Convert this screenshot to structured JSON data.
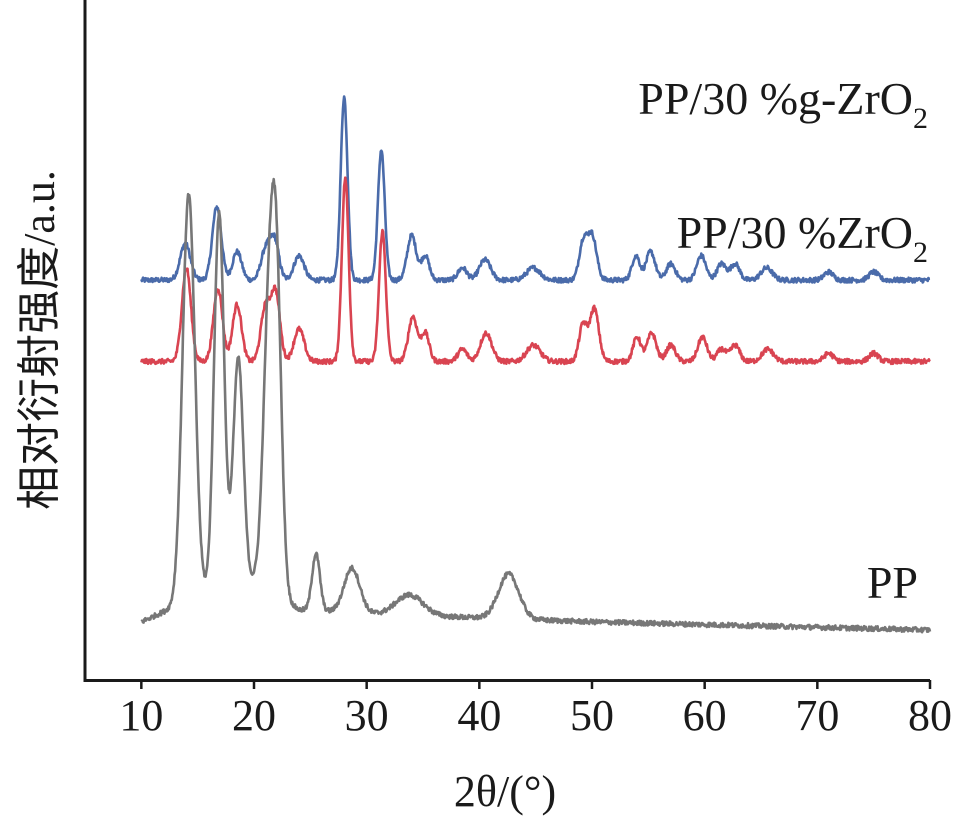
{
  "chart_data": {
    "type": "line",
    "title": "",
    "xlabel": "2θ/(°)",
    "ylabel": "相对衍射强度/a.u.",
    "xlim": [
      5,
      80
    ],
    "xticks": [
      10,
      20,
      30,
      40,
      50,
      60,
      70,
      80
    ],
    "y_tick_labels": false,
    "grid": false,
    "legend": "labels placed beside each curve",
    "series": [
      {
        "name": "PP/30 %g-ZrO2",
        "label_main": "PP/30 %g-ZrO",
        "label_sub": "2",
        "color": "#4a6baa",
        "baseline": 0.86,
        "peaks": [
          [
            13.9,
            0.09,
            0.45
          ],
          [
            16.7,
            0.18,
            0.4
          ],
          [
            18.5,
            0.07,
            0.4
          ],
          [
            21.0,
            0.07,
            0.4
          ],
          [
            21.8,
            0.1,
            0.4
          ],
          [
            24.0,
            0.06,
            0.45
          ],
          [
            28.0,
            0.45,
            0.3
          ],
          [
            31.3,
            0.32,
            0.3
          ],
          [
            34.0,
            0.11,
            0.4
          ],
          [
            35.2,
            0.06,
            0.35
          ],
          [
            38.5,
            0.03,
            0.4
          ],
          [
            40.5,
            0.05,
            0.5
          ],
          [
            44.8,
            0.03,
            0.6
          ],
          [
            49.2,
            0.09,
            0.35
          ],
          [
            50.0,
            0.11,
            0.4
          ],
          [
            53.9,
            0.06,
            0.35
          ],
          [
            55.2,
            0.07,
            0.4
          ],
          [
            57.0,
            0.04,
            0.4
          ],
          [
            59.7,
            0.06,
            0.4
          ],
          [
            61.5,
            0.04,
            0.4
          ],
          [
            62.7,
            0.04,
            0.4
          ],
          [
            65.5,
            0.03,
            0.5
          ],
          [
            71.0,
            0.02,
            0.4
          ],
          [
            75.0,
            0.02,
            0.4
          ]
        ]
      },
      {
        "name": "PP/30 %ZrO2",
        "label_main": "PP/30 %ZrO",
        "label_sub": "2",
        "color": "#d94451",
        "baseline": 0.66,
        "peaks": [
          [
            14.0,
            0.23,
            0.4
          ],
          [
            16.8,
            0.18,
            0.4
          ],
          [
            18.5,
            0.14,
            0.4
          ],
          [
            21.0,
            0.13,
            0.4
          ],
          [
            21.9,
            0.17,
            0.4
          ],
          [
            24.0,
            0.08,
            0.45
          ],
          [
            28.1,
            0.45,
            0.3
          ],
          [
            31.4,
            0.32,
            0.3
          ],
          [
            34.1,
            0.11,
            0.4
          ],
          [
            35.2,
            0.07,
            0.35
          ],
          [
            38.5,
            0.03,
            0.4
          ],
          [
            40.6,
            0.07,
            0.5
          ],
          [
            44.8,
            0.04,
            0.6
          ],
          [
            49.2,
            0.09,
            0.35
          ],
          [
            50.2,
            0.13,
            0.4
          ],
          [
            54.0,
            0.06,
            0.35
          ],
          [
            55.3,
            0.07,
            0.4
          ],
          [
            57.0,
            0.04,
            0.4
          ],
          [
            59.8,
            0.06,
            0.4
          ],
          [
            61.5,
            0.03,
            0.4
          ],
          [
            62.7,
            0.04,
            0.4
          ],
          [
            65.6,
            0.03,
            0.5
          ],
          [
            71.0,
            0.02,
            0.4
          ],
          [
            75.0,
            0.02,
            0.4
          ]
        ]
      },
      {
        "name": "PP",
        "label_main": "PP",
        "label_sub": "",
        "color": "#777777",
        "baseline": 0.0,
        "peaks": [
          [
            14.2,
            1.0,
            0.55
          ],
          [
            16.9,
            0.93,
            0.45
          ],
          [
            18.6,
            0.56,
            0.45
          ],
          [
            21.3,
            0.62,
            0.5
          ],
          [
            22.0,
            0.7,
            0.45
          ],
          [
            25.5,
            0.14,
            0.35
          ],
          [
            28.7,
            0.11,
            0.7
          ],
          [
            33.8,
            0.05,
            1.2
          ],
          [
            42.6,
            0.11,
            0.9
          ]
        ],
        "background": [
          [
            10.0,
            0.02
          ],
          [
            14.0,
            0.07
          ],
          [
            20.0,
            0.12
          ],
          [
            24.0,
            0.05
          ],
          [
            30.0,
            0.04
          ],
          [
            40.0,
            0.03
          ],
          [
            50.0,
            0.02
          ],
          [
            65.0,
            0.01
          ],
          [
            80.0,
            0.0
          ]
        ]
      }
    ]
  }
}
